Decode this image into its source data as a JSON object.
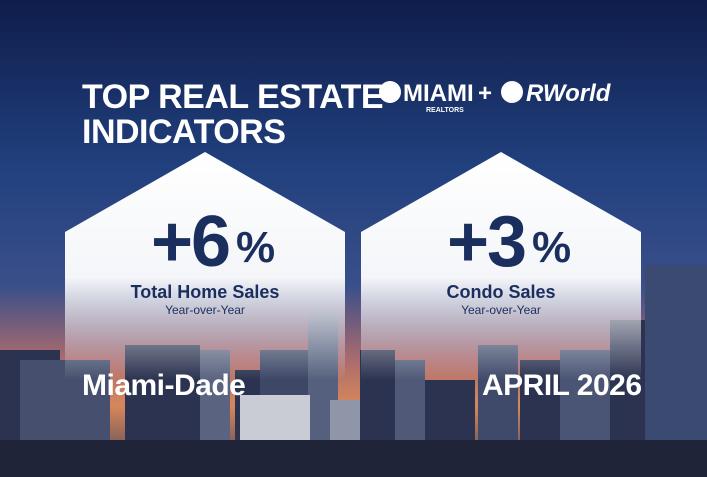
{
  "header": {
    "title_lines": [
      "TOP REAL ESTATE",
      "INDICATORS"
    ]
  },
  "logos": {
    "miami": "MIAMI",
    "realtors": "REALTORS",
    "plus": "+",
    "rworld": "RWorld"
  },
  "indicators": [
    {
      "value": "+6",
      "unit": "%",
      "label": "Total Home Sales",
      "sublabel": "Year-over-Year",
      "footer": "Miami-Dade"
    },
    {
      "value": "+3",
      "unit": "%",
      "label": "Condo Sales",
      "sublabel": "Year-over-Year",
      "footer": "APRIL 2026"
    }
  ]
}
